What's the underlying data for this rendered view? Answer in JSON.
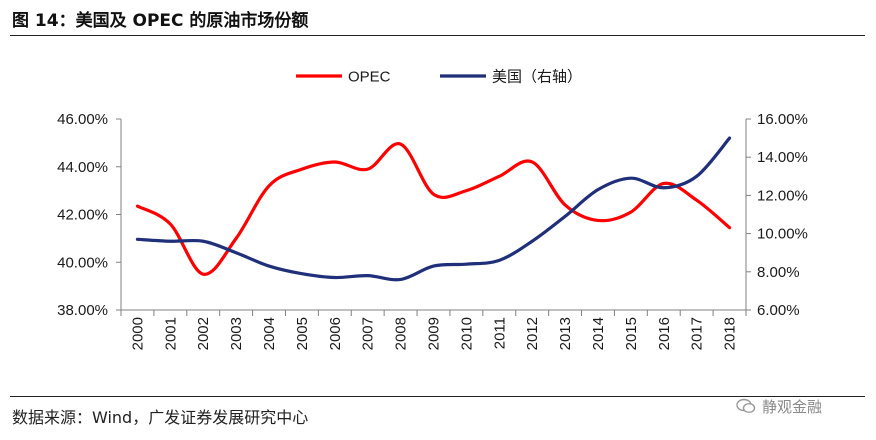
{
  "figure": {
    "title": "图 14：美国及 OPEC 的原油市场份额",
    "source": "数据来源：Wind，广发证券发展研究中心",
    "watermark": "静观金融"
  },
  "colors": {
    "opec": "#ff0000",
    "usa": "#1f2f7a",
    "axis": "#808080",
    "text": "#1a1a1a"
  },
  "chart_data": {
    "type": "line",
    "title": "",
    "legend_position": "top-center",
    "categories": [
      "2000",
      "2001",
      "2002",
      "2003",
      "2004",
      "2005",
      "2006",
      "2007",
      "2008",
      "2009",
      "2010",
      "2011",
      "2012",
      "2013",
      "2014",
      "2015",
      "2016",
      "2017",
      "2018"
    ],
    "series": [
      {
        "name": "OPEC",
        "axis": "left",
        "values": [
          42.35,
          41.6,
          39.5,
          41.0,
          43.2,
          43.9,
          44.2,
          43.9,
          44.95,
          42.85,
          43.0,
          43.6,
          44.2,
          42.4,
          41.75,
          42.1,
          43.3,
          42.6,
          41.45
        ]
      },
      {
        "name": "美国（右轴）",
        "axis": "right",
        "values": [
          9.7,
          9.6,
          9.6,
          9.0,
          8.3,
          7.9,
          7.7,
          7.8,
          7.6,
          8.3,
          8.4,
          8.6,
          9.6,
          10.9,
          12.3,
          12.9,
          12.4,
          13.0,
          15.0
        ]
      }
    ],
    "y_left": {
      "min": 38,
      "max": 46,
      "step": 2,
      "tick_labels": [
        "38.00%",
        "40.00%",
        "42.00%",
        "44.00%",
        "46.00%"
      ]
    },
    "y_right": {
      "min": 6,
      "max": 16,
      "step": 2,
      "tick_labels": [
        "6.00%",
        "8.00%",
        "10.00%",
        "12.00%",
        "14.00%",
        "16.00%"
      ]
    },
    "grid": false
  }
}
